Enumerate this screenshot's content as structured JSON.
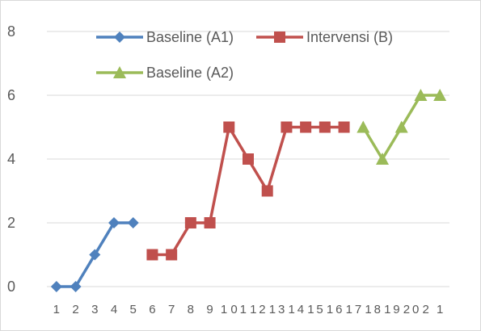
{
  "chart_data": {
    "type": "line",
    "title": "",
    "xlabel": "",
    "ylabel": "",
    "ylim": [
      0,
      8
    ],
    "y_ticks": [
      "0",
      "2",
      "4",
      "6",
      "8"
    ],
    "grid": "horizontal",
    "legend_position": "top",
    "x_tick_labels": [
      "1",
      "2",
      "3",
      "4",
      "5",
      "6",
      "7",
      "8",
      "9",
      "1 0",
      "1 1",
      "2 1",
      "3 1",
      "4 1",
      "5 1",
      "6 1",
      "7 1",
      "8 1",
      "9 2",
      "0 2",
      "1"
    ],
    "series": [
      {
        "name": "Baseline (A1)",
        "color": "#4f81bd",
        "marker": "diamond",
        "x": [
          1,
          2,
          3,
          4,
          5
        ],
        "values": [
          0,
          0,
          1,
          2,
          2
        ]
      },
      {
        "name": "Intervensi (B)",
        "color": "#c0504d",
        "marker": "square",
        "x": [
          6,
          7,
          8,
          9,
          10,
          11,
          12,
          13,
          14,
          15,
          16
        ],
        "values": [
          1,
          1,
          2,
          2,
          5,
          4,
          3,
          5,
          5,
          5,
          5
        ]
      },
      {
        "name": "Baseline (A2)",
        "color": "#9bbb59",
        "marker": "triangle",
        "x": [
          17,
          18,
          19,
          20,
          21
        ],
        "values": [
          5,
          4,
          5,
          6,
          6
        ]
      }
    ]
  }
}
